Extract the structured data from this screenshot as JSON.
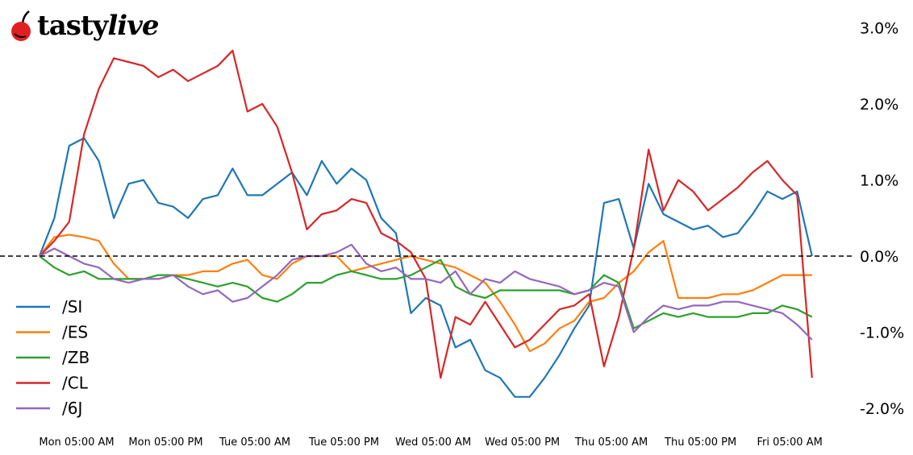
{
  "logo": {
    "brand": "tastylive",
    "part1": "tasty",
    "part2": "live"
  },
  "chart_data": {
    "type": "line",
    "title": "",
    "xlabel": "",
    "ylabel": "",
    "y_unit": "%",
    "ylim": [
      -2.05,
      3.05
    ],
    "y_axis_position": "right",
    "grid": false,
    "zero_line": {
      "value": 0,
      "style": "dashed",
      "color": "#000000"
    },
    "legend_position": "lower-left",
    "x_tick_labels": [
      "Mon 05:00 AM",
      "Mon 05:00 PM",
      "Tue 05:00 AM",
      "Tue 05:00 PM",
      "Wed 05:00 AM",
      "Wed 05:00 PM",
      "Thu 05:00 AM",
      "Thu 05:00 PM",
      "Fri 05:00 AM"
    ],
    "y_tick_labels": [
      "3.0%",
      "2.0%",
      "1.0%",
      "0.0%",
      "-1.0%",
      "-2.0%"
    ],
    "y_tick_values": [
      3,
      2,
      1,
      0,
      -1,
      -2
    ],
    "x": [
      "Mon 00:00",
      "Mon 02:00",
      "Mon 04:00",
      "Mon 06:00",
      "Mon 08:00",
      "Mon 10:00",
      "Mon 12:00",
      "Mon 14:00",
      "Mon 16:00",
      "Mon 18:00",
      "Mon 20:00",
      "Mon 22:00",
      "Tue 00:00",
      "Tue 02:00",
      "Tue 04:00",
      "Tue 06:00",
      "Tue 08:00",
      "Tue 10:00",
      "Tue 12:00",
      "Tue 14:00",
      "Tue 16:00",
      "Tue 18:00",
      "Tue 20:00",
      "Tue 22:00",
      "Wed 00:00",
      "Wed 02:00",
      "Wed 04:00",
      "Wed 06:00",
      "Wed 08:00",
      "Wed 10:00",
      "Wed 12:00",
      "Wed 14:00",
      "Wed 16:00",
      "Wed 18:00",
      "Wed 20:00",
      "Wed 22:00",
      "Thu 00:00",
      "Thu 02:00",
      "Thu 04:00",
      "Thu 06:00",
      "Thu 08:00",
      "Thu 10:00",
      "Thu 12:00",
      "Thu 14:00",
      "Thu 16:00",
      "Thu 18:00",
      "Thu 20:00",
      "Thu 22:00",
      "Fri 00:00",
      "Fri 02:00",
      "Fri 04:00",
      "Fri 06:00",
      "Fri 08:00"
    ],
    "series": [
      {
        "name": "/SI",
        "color": "#1f77b4",
        "values": [
          0.0,
          0.5,
          1.45,
          1.55,
          1.25,
          0.5,
          0.95,
          1.0,
          0.7,
          0.65,
          0.5,
          0.75,
          0.8,
          1.15,
          0.8,
          0.8,
          0.95,
          1.1,
          0.8,
          1.25,
          0.95,
          1.15,
          1.0,
          0.5,
          0.3,
          -0.75,
          -0.55,
          -0.65,
          -1.2,
          -1.1,
          -1.5,
          -1.6,
          -1.85,
          -1.85,
          -1.6,
          -1.3,
          -0.95,
          -0.65,
          0.7,
          0.75,
          0.1,
          0.95,
          0.55,
          0.45,
          0.35,
          0.4,
          0.25,
          0.3,
          0.55,
          0.85,
          0.75,
          0.85,
          0.0
        ]
      },
      {
        "name": "/ES",
        "color": "#ff7f0e",
        "values": [
          0.0,
          0.25,
          0.28,
          0.25,
          0.2,
          -0.1,
          -0.3,
          -0.3,
          -0.3,
          -0.25,
          -0.25,
          -0.2,
          -0.2,
          -0.1,
          -0.05,
          -0.25,
          -0.3,
          -0.1,
          0.0,
          0.0,
          0.0,
          -0.2,
          -0.15,
          -0.1,
          -0.05,
          0.0,
          -0.05,
          -0.1,
          -0.15,
          -0.25,
          -0.35,
          -0.6,
          -0.9,
          -1.25,
          -1.15,
          -0.95,
          -0.85,
          -0.6,
          -0.55,
          -0.35,
          -0.2,
          0.05,
          0.2,
          -0.55,
          -0.55,
          -0.55,
          -0.5,
          -0.5,
          -0.45,
          -0.35,
          -0.25,
          -0.25,
          -0.25
        ]
      },
      {
        "name": "/ZB",
        "color": "#2ca02c",
        "values": [
          0.0,
          -0.15,
          -0.25,
          -0.2,
          -0.3,
          -0.3,
          -0.3,
          -0.3,
          -0.25,
          -0.25,
          -0.3,
          -0.35,
          -0.4,
          -0.35,
          -0.4,
          -0.55,
          -0.6,
          -0.5,
          -0.35,
          -0.35,
          -0.25,
          -0.2,
          -0.25,
          -0.3,
          -0.3,
          -0.25,
          -0.15,
          -0.05,
          -0.4,
          -0.5,
          -0.55,
          -0.45,
          -0.45,
          -0.45,
          -0.45,
          -0.45,
          -0.5,
          -0.45,
          -0.25,
          -0.35,
          -0.95,
          -0.85,
          -0.75,
          -0.8,
          -0.75,
          -0.8,
          -0.8,
          -0.8,
          -0.75,
          -0.75,
          -0.65,
          -0.7,
          -0.8
        ]
      },
      {
        "name": "/CL",
        "color": "#d62728",
        "values": [
          0.0,
          0.2,
          0.45,
          1.6,
          2.2,
          2.6,
          2.55,
          2.5,
          2.35,
          2.45,
          2.3,
          2.4,
          2.5,
          2.7,
          1.9,
          2.0,
          1.7,
          1.1,
          0.35,
          0.55,
          0.6,
          0.75,
          0.7,
          0.3,
          0.2,
          0.05,
          -0.3,
          -1.6,
          -0.8,
          -0.9,
          -0.6,
          -0.9,
          -1.2,
          -1.1,
          -0.9,
          -0.7,
          -0.65,
          -0.5,
          -1.45,
          -0.8,
          0.1,
          1.4,
          0.6,
          1.0,
          0.85,
          0.6,
          0.75,
          0.9,
          1.1,
          1.25,
          1.0,
          0.8,
          -1.6
        ]
      },
      {
        "name": "/6J",
        "color": "#9467bd",
        "values": [
          0.0,
          0.1,
          0.0,
          -0.1,
          -0.15,
          -0.3,
          -0.35,
          -0.3,
          -0.3,
          -0.25,
          -0.4,
          -0.5,
          -0.45,
          -0.6,
          -0.55,
          -0.4,
          -0.25,
          -0.05,
          0.0,
          0.0,
          0.05,
          0.15,
          -0.1,
          -0.2,
          -0.15,
          -0.3,
          -0.3,
          -0.35,
          -0.2,
          -0.5,
          -0.3,
          -0.35,
          -0.2,
          -0.3,
          -0.35,
          -0.4,
          -0.5,
          -0.45,
          -0.35,
          -0.4,
          -1.0,
          -0.8,
          -0.65,
          -0.7,
          -0.65,
          -0.65,
          -0.6,
          -0.6,
          -0.65,
          -0.7,
          -0.75,
          -0.9,
          -1.1
        ]
      }
    ]
  }
}
